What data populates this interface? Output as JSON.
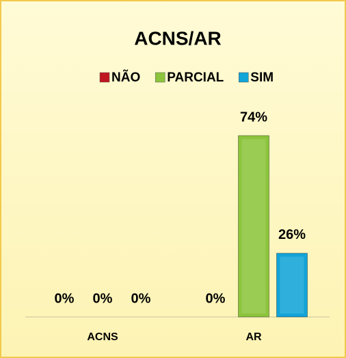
{
  "chart_data": {
    "type": "bar",
    "title": "ACNS/AR",
    "categories": [
      "ACNS",
      "AR"
    ],
    "series": [
      {
        "name": "NÃO",
        "color": "#c0161f",
        "values": [
          0,
          0
        ],
        "value_labels": [
          "0%",
          "0%"
        ]
      },
      {
        "name": "PARCIAL",
        "color": "#8cc43c",
        "values": [
          0,
          74
        ],
        "value_labels": [
          "0%",
          "74%"
        ]
      },
      {
        "name": "SIM",
        "color": "#13a4d8",
        "values": [
          0,
          26
        ],
        "value_labels": [
          "0%",
          "26%"
        ]
      }
    ],
    "legend": "top"
  }
}
